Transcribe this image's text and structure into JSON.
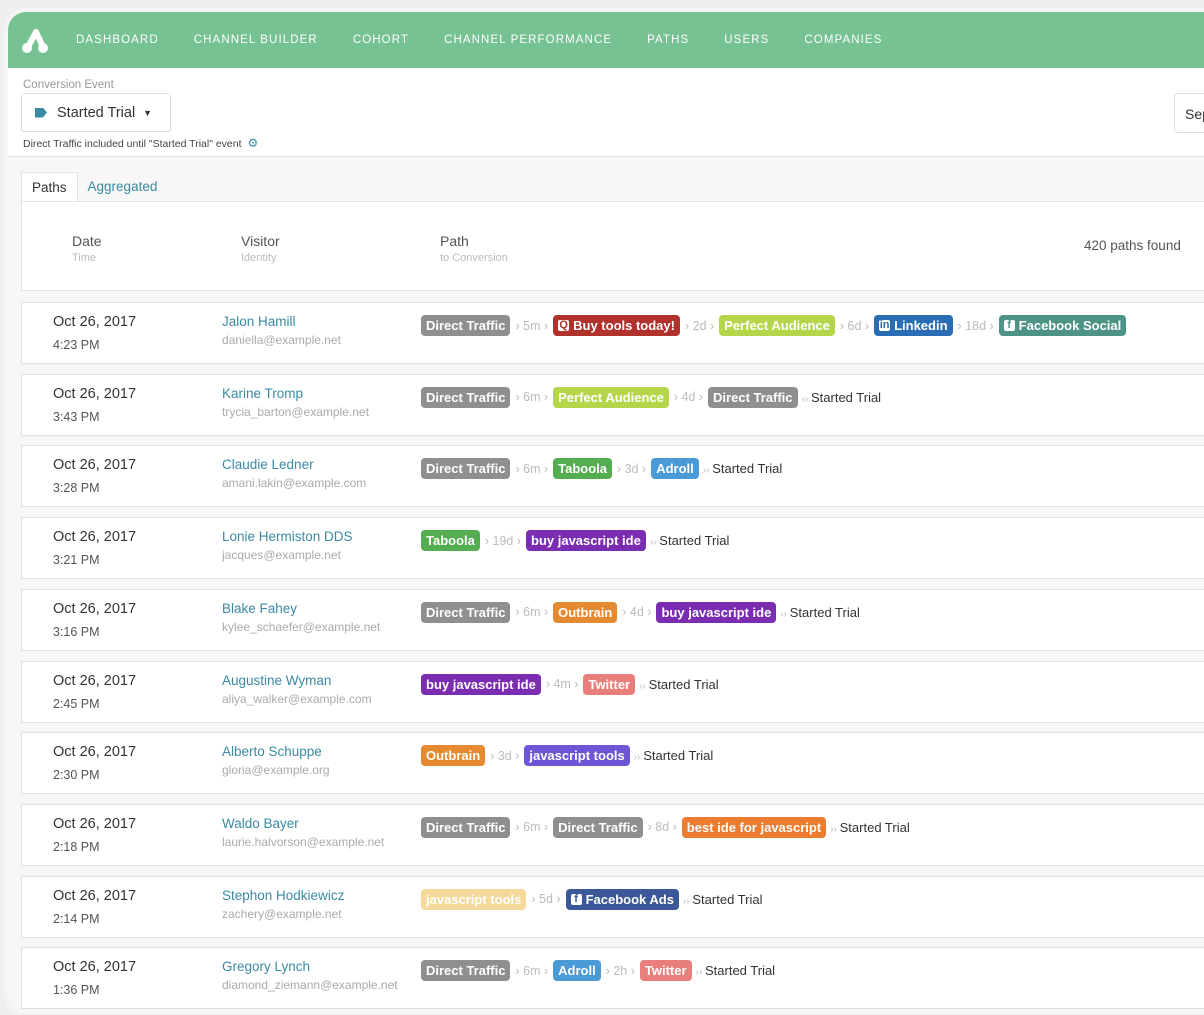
{
  "nav": {
    "items": [
      "DASHBOARD",
      "CHANNEL BUILDER",
      "COHORT",
      "CHANNEL PERFORMANCE",
      "PATHS",
      "USERS",
      "COMPANIES"
    ],
    "bg": "#76c293"
  },
  "header": {
    "conversion_label": "Conversion Event",
    "conversion_value": "Started Trial",
    "note": "Direct Traffic included until \"Started Trial\" event",
    "right_button": "Sep"
  },
  "tabs": [
    "Paths",
    "Aggregated"
  ],
  "table": {
    "date": "Date",
    "date_sub": "Time",
    "visitor": "Visitor",
    "visitor_sub": "Identity",
    "path": "Path",
    "path_sub": "to Conversion",
    "count": "420 paths found"
  },
  "rows": [
    {
      "date": "Oct 26, 2017",
      "time": "4:23 PM",
      "name": "Jalon Hamill",
      "email": "daniella@example.net",
      "path": [
        {
          "label": "Direct Traffic",
          "color": "#8f8f8f"
        },
        "5m",
        {
          "label": "Buy tools today!",
          "color": "#b0322c",
          "icon": "search-icon"
        },
        "2d",
        {
          "label": "Perfect Audience",
          "color": "#b5d64a"
        },
        "6d",
        {
          "label": "Linkedin",
          "color": "#2a6db5",
          "icon": "linkedin-icon"
        },
        "18d",
        {
          "label": "Facebook Social",
          "color": "#4f9386",
          "icon": "facebook-icon"
        }
      ],
      "conversion": ""
    },
    {
      "date": "Oct 26, 2017",
      "time": "3:43 PM",
      "name": "Karine Tromp",
      "email": "trycia_barton@example.net",
      "path": [
        {
          "label": "Direct Traffic",
          "color": "#8f8f8f"
        },
        "6m",
        {
          "label": "Perfect Audience",
          "color": "#b5d64a"
        },
        "4d",
        {
          "label": "Direct Traffic",
          "color": "#8f8f8f"
        }
      ],
      "conversion": "Started Trial"
    },
    {
      "date": "Oct 26, 2017",
      "time": "3:28 PM",
      "name": "Claudie Ledner",
      "email": "amani.lakin@example.com",
      "path": [
        {
          "label": "Direct Traffic",
          "color": "#8f8f8f"
        },
        "6m",
        {
          "label": "Taboola",
          "color": "#55ad52"
        },
        "3d",
        {
          "label": "Adroll",
          "color": "#4a9ad8"
        }
      ],
      "conversion": "Started Trial"
    },
    {
      "date": "Oct 26, 2017",
      "time": "3:21 PM",
      "name": "Lonie Hermiston DDS",
      "email": "jacques@example.net",
      "path": [
        {
          "label": "Taboola",
          "color": "#55ad52"
        },
        "19d",
        {
          "label": "buy javascript ide",
          "color": "#7a2db0"
        }
      ],
      "conversion": "Started Trial"
    },
    {
      "date": "Oct 26, 2017",
      "time": "3:16 PM",
      "name": "Blake Fahey",
      "email": "kylee_schaefer@example.net",
      "path": [
        {
          "label": "Direct Traffic",
          "color": "#8f8f8f"
        },
        "6m",
        {
          "label": "Outbrain",
          "color": "#e58a30"
        },
        "4d",
        {
          "label": "buy javascript ide",
          "color": "#7a2db0"
        }
      ],
      "conversion": "Started Trial"
    },
    {
      "date": "Oct 26, 2017",
      "time": "2:45 PM",
      "name": "Augustine Wyman",
      "email": "aliya_walker@example.com",
      "path": [
        {
          "label": "buy javascript ide",
          "color": "#7a2db0"
        },
        "4m",
        {
          "label": "Twitter",
          "color": "#e87f7a"
        }
      ],
      "conversion": "Started Trial"
    },
    {
      "date": "Oct 26, 2017",
      "time": "2:30 PM",
      "name": "Alberto Schuppe",
      "email": "gloria@example.org",
      "path": [
        {
          "label": "Outbrain",
          "color": "#e58a30"
        },
        "3d",
        {
          "label": "javascript tools",
          "color": "#6e55d6"
        }
      ],
      "conversion": "Started Trial"
    },
    {
      "date": "Oct 26, 2017",
      "time": "2:18 PM",
      "name": "Waldo Bayer",
      "email": "laurie.halvorson@example.net",
      "path": [
        {
          "label": "Direct Traffic",
          "color": "#8f8f8f"
        },
        "6m",
        {
          "label": "Direct Traffic",
          "color": "#8f8f8f"
        },
        "8d",
        {
          "label": "best ide for javascript",
          "color": "#ec7d30"
        }
      ],
      "conversion": "Started Trial"
    },
    {
      "date": "Oct 26, 2017",
      "time": "2:14 PM",
      "name": "Stephon Hodkiewicz",
      "email": "zachery@example.net",
      "path": [
        {
          "label": "javascript tools",
          "color": "#f5d99a"
        },
        "5d",
        {
          "label": "Facebook Ads",
          "color": "#3b5999",
          "icon": "facebook-icon"
        }
      ],
      "conversion": "Started Trial"
    },
    {
      "date": "Oct 26, 2017",
      "time": "1:36 PM",
      "name": "Gregory Lynch",
      "email": "diamond_ziemann@example.net",
      "path": [
        {
          "label": "Direct Traffic",
          "color": "#8f8f8f"
        },
        "6m",
        {
          "label": "Adroll",
          "color": "#4a9ad8"
        },
        "2h",
        {
          "label": "Twitter",
          "color": "#e87f7a"
        }
      ],
      "conversion": "Started Trial"
    }
  ]
}
